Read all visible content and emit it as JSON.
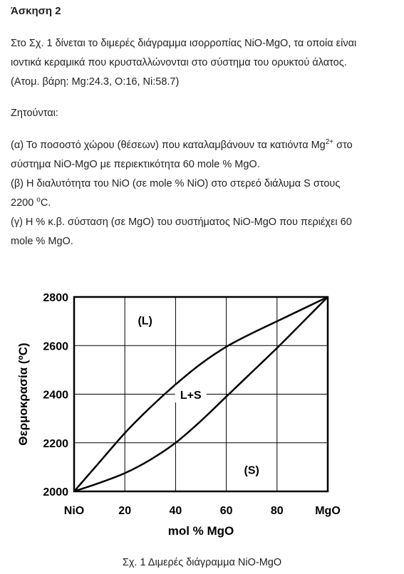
{
  "doc": {
    "title": "Άσκηση 2",
    "intro": [
      "Στο Σχ. 1 δίνεται το διμερές διάγραμμα ισορροπίας NiO-MgO, τα οποία είναι",
      "ιοντικά κεραμικά που κρυσταλλώνονται στο σύστημα του ορυκτού άλατος.",
      "(Ατομ. βάρη: Mg:24.3, O:16, Ni:58.7)"
    ],
    "asked": "Ζητούνται:",
    "q_a_line1_pre": "(α) Το ποσοστό χώρου (θέσεων) που καταλαμβάνουν τα κατιόντα Mg",
    "q_a_line1_sup": "2+",
    "q_a_line1_post": " στο",
    "q_a_line2": "σύστημα NiO-MgO με περιεκτικότητα 60 mole % MgO.",
    "q_b_line1": "(β) Η διαλυτότητα του NiO (σε mole % NiO) στο στερεό διάλυμα S στους",
    "q_b_line2_pre": "2200 ",
    "q_b_line2_sup": "o",
    "q_b_line2_post": "C.",
    "q_c_line1": "(γ) Η  % κ.β. σύσταση (σε MgO) του συστήματος NiO-MgO που περιέχει 60",
    "q_c_line2": "mole % MgO.",
    "caption": "Σχ. 1 Διμερές διάγραμμα NiO-MgO"
  },
  "chart_data": {
    "type": "line",
    "xlabel": "mol  %  MgO",
    "ylabel": "Θερμοκρασία  (ºC)",
    "xlim": [
      0,
      100
    ],
    "ylim": [
      2000,
      2800
    ],
    "x_ticks": [
      {
        "value": 0,
        "label": "NiO"
      },
      {
        "value": 20,
        "label": "20"
      },
      {
        "value": 40,
        "label": "40"
      },
      {
        "value": 60,
        "label": "60"
      },
      {
        "value": 80,
        "label": "80"
      },
      {
        "value": 100,
        "label": "MgO"
      }
    ],
    "y_ticks": [
      2000,
      2200,
      2400,
      2600,
      2800
    ],
    "grid": true,
    "series": [
      {
        "x": [
          0,
          10,
          20,
          30,
          40,
          50,
          60,
          70,
          80,
          90,
          100
        ],
        "y": [
          2000,
          2120,
          2240,
          2345,
          2440,
          2525,
          2595,
          2650,
          2700,
          2750,
          2800
        ]
      },
      {
        "x": [
          0,
          10,
          20,
          30,
          40,
          50,
          60,
          70,
          80,
          90,
          100
        ],
        "y": [
          2000,
          2035,
          2075,
          2130,
          2200,
          2290,
          2390,
          2490,
          2590,
          2695,
          2800
        ]
      }
    ],
    "region_labels": [
      {
        "text": "(L)",
        "x": 28,
        "y": 2705
      },
      {
        "text": "L+S",
        "x": 46,
        "y": 2398
      },
      {
        "text": "(S)",
        "x": 70,
        "y": 2090
      }
    ]
  }
}
